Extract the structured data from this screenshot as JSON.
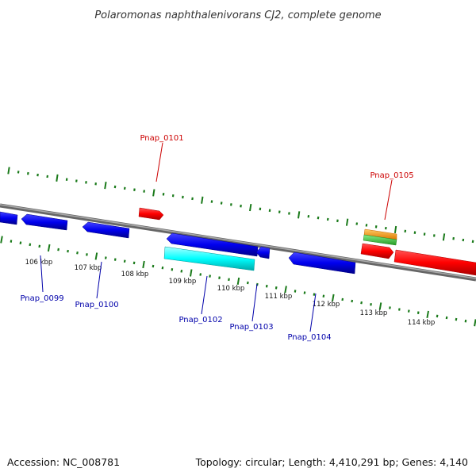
{
  "title": "Polaromonas naphthalenivorans CJ2, complete genome",
  "footer": {
    "accession": "Accession: NC_008781",
    "stats": "Topology: circular; Length: 4,410,291 bp; Genes: 4,140"
  },
  "colors": {
    "backbone": "#888888",
    "tick": "#1a7a1a",
    "forward_label": "#cc0000",
    "reverse_label": "#0000aa",
    "gene_red": "#ff0000",
    "gene_blue": "#0000ee",
    "gene_cyan": "#00ffff",
    "gene_orange": "#ff9900",
    "gene_green": "#33cc33"
  },
  "kbp_labels": [
    "106 kbp",
    "107 kbp",
    "108 kbp",
    "109 kbp",
    "110 kbp",
    "111 kbp",
    "112 kbp",
    "113 kbp",
    "114 kbp"
  ],
  "gene_labels": {
    "forward": [
      "Pnap_0101",
      "Pnap_0105"
    ],
    "reverse": [
      "Pnap_0099",
      "Pnap_0100",
      "Pnap_0102",
      "Pnap_0103",
      "Pnap_0104"
    ]
  }
}
